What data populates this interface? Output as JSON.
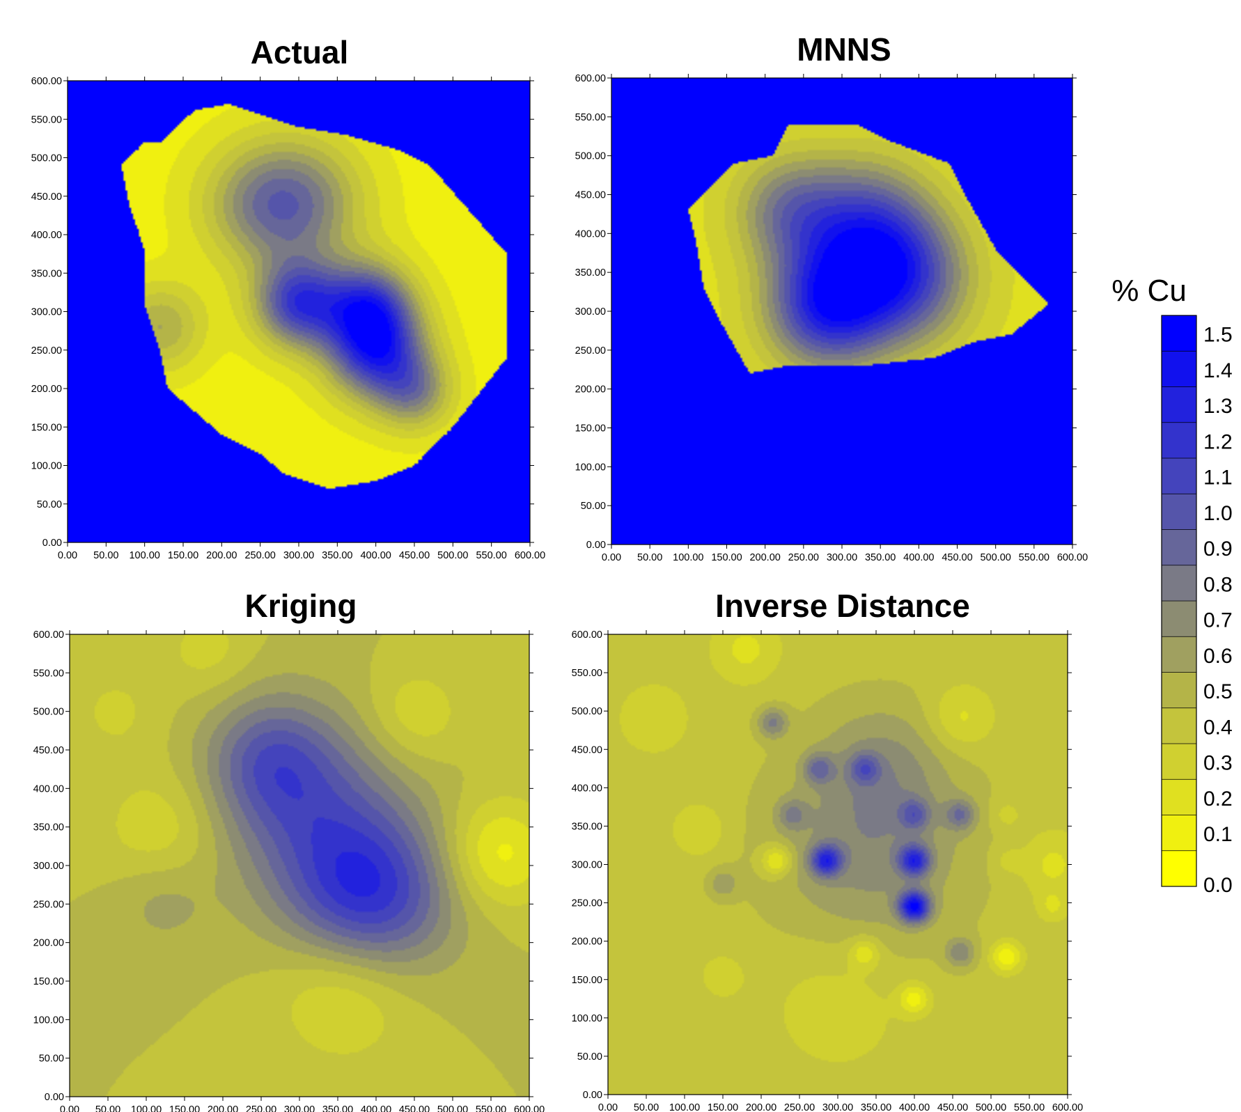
{
  "chart_data": {
    "type": "heatmap",
    "variable": "% Cu",
    "x_range": [
      0,
      600
    ],
    "y_range": [
      0,
      600
    ],
    "tick_values": [
      0,
      50,
      100,
      150,
      200,
      250,
      300,
      350,
      400,
      450,
      500,
      550,
      600
    ],
    "tick_labels": [
      "0.00",
      "50.00",
      "100.00",
      "150.00",
      "200.00",
      "250.00",
      "300.00",
      "350.00",
      "400.00",
      "450.00",
      "500.00",
      "550.00",
      "600.00"
    ],
    "panels": [
      {
        "title": "Actual",
        "background": 1.6,
        "region": [
          [
            70,
            490
          ],
          [
            100,
            520
          ],
          [
            120,
            520
          ],
          [
            165,
            562
          ],
          [
            210,
            570
          ],
          [
            300,
            540
          ],
          [
            360,
            530
          ],
          [
            430,
            510
          ],
          [
            470,
            490
          ],
          [
            570,
            375
          ],
          [
            570,
            240
          ],
          [
            500,
            150
          ],
          [
            450,
            100
          ],
          [
            400,
            80
          ],
          [
            340,
            70
          ],
          [
            280,
            90
          ],
          [
            250,
            115
          ],
          [
            200,
            140
          ],
          [
            130,
            200
          ],
          [
            120,
            250
          ],
          [
            100,
            310
          ],
          [
            100,
            380
          ],
          [
            80,
            440
          ]
        ],
        "bumps": [
          {
            "x": 400,
            "y": 250,
            "v": 1.1,
            "s": 45
          },
          {
            "x": 300,
            "y": 310,
            "v": 1.0,
            "s": 40
          },
          {
            "x": 390,
            "y": 310,
            "v": 0.85,
            "s": 40
          },
          {
            "x": 300,
            "y": 440,
            "v": 0.65,
            "s": 60
          },
          {
            "x": 450,
            "y": 195,
            "v": 0.55,
            "s": 35
          },
          {
            "x": 240,
            "y": 440,
            "v": 0.35,
            "s": 55
          },
          {
            "x": 120,
            "y": 280,
            "v": 0.45,
            "s": 40
          }
        ],
        "base": 0.15
      },
      {
        "title": "MNNS",
        "background": 1.6,
        "region": [
          [
            100,
            430
          ],
          [
            130,
            460
          ],
          [
            160,
            490
          ],
          [
            210,
            500
          ],
          [
            230,
            540
          ],
          [
            320,
            540
          ],
          [
            360,
            520
          ],
          [
            440,
            490
          ],
          [
            460,
            450
          ],
          [
            500,
            380
          ],
          [
            570,
            310
          ],
          [
            520,
            270
          ],
          [
            470,
            260
          ],
          [
            420,
            240
          ],
          [
            330,
            230
          ],
          [
            230,
            230
          ],
          [
            180,
            220
          ],
          [
            160,
            255
          ],
          [
            140,
            290
          ],
          [
            120,
            330
          ],
          [
            110,
            390
          ]
        ],
        "bumps": [
          {
            "x": 280,
            "y": 305,
            "v": 1.05,
            "s": 55
          },
          {
            "x": 380,
            "y": 340,
            "v": 0.85,
            "s": 60
          },
          {
            "x": 330,
            "y": 410,
            "v": 0.75,
            "s": 60
          },
          {
            "x": 230,
            "y": 430,
            "v": 0.55,
            "s": 50
          }
        ],
        "base": 0.25
      },
      {
        "title": "Kriging",
        "background": null,
        "region": null,
        "bumps": [
          {
            "x": 390,
            "y": 260,
            "v": 0.75,
            "s": 75
          },
          {
            "x": 310,
            "y": 380,
            "v": 0.45,
            "s": 85
          },
          {
            "x": 260,
            "y": 440,
            "v": 0.35,
            "s": 55
          },
          {
            "x": 120,
            "y": 255,
            "v": 0.15,
            "s": 45
          },
          {
            "x": 560,
            "y": 315,
            "v": -0.35,
            "s": 50
          },
          {
            "x": 360,
            "y": 145,
            "v": -0.3,
            "s": 65
          },
          {
            "x": 120,
            "y": 345,
            "v": -0.2,
            "s": 55
          },
          {
            "x": 450,
            "y": 495,
            "v": -0.2,
            "s": 45
          },
          {
            "x": 180,
            "y": 580,
            "v": -0.15,
            "s": 40
          },
          {
            "x": 60,
            "y": 500,
            "v": -0.12,
            "s": 45
          }
        ],
        "base": 0.5
      },
      {
        "title": "Inverse Distance",
        "background": null,
        "region": null,
        "bumps": [
          {
            "x": 400,
            "y": 245,
            "v": 0.95,
            "s": 14
          },
          {
            "x": 400,
            "y": 305,
            "v": 0.7,
            "s": 14
          },
          {
            "x": 285,
            "y": 305,
            "v": 0.7,
            "s": 14
          },
          {
            "x": 340,
            "y": 320,
            "v": 0.3,
            "s": 90
          },
          {
            "x": 360,
            "y": 430,
            "v": 0.2,
            "s": 60
          },
          {
            "x": 460,
            "y": 365,
            "v": 0.35,
            "s": 14
          },
          {
            "x": 400,
            "y": 365,
            "v": 0.35,
            "s": 14
          },
          {
            "x": 335,
            "y": 425,
            "v": 0.35,
            "s": 14
          },
          {
            "x": 275,
            "y": 425,
            "v": 0.35,
            "s": 14
          },
          {
            "x": 215,
            "y": 485,
            "v": 0.35,
            "s": 14
          },
          {
            "x": 460,
            "y": 185,
            "v": 0.3,
            "s": 14
          },
          {
            "x": 150,
            "y": 275,
            "v": 0.2,
            "s": 14
          },
          {
            "x": 240,
            "y": 365,
            "v": 0.25,
            "s": 14
          },
          {
            "x": 520,
            "y": 180,
            "v": -0.35,
            "s": 14
          },
          {
            "x": 220,
            "y": 305,
            "v": -0.35,
            "s": 14
          },
          {
            "x": 400,
            "y": 125,
            "v": -0.3,
            "s": 14
          },
          {
            "x": 335,
            "y": 185,
            "v": -0.25,
            "s": 14
          },
          {
            "x": 460,
            "y": 490,
            "v": -0.2,
            "s": 30
          },
          {
            "x": 180,
            "y": 580,
            "v": -0.18,
            "s": 30
          },
          {
            "x": 60,
            "y": 490,
            "v": -0.15,
            "s": 30
          },
          {
            "x": 120,
            "y": 345,
            "v": -0.15,
            "s": 25
          },
          {
            "x": 580,
            "y": 300,
            "v": -0.18,
            "s": 30
          },
          {
            "x": 520,
            "y": 365,
            "v": -0.12,
            "s": 14
          },
          {
            "x": 580,
            "y": 245,
            "v": -0.15,
            "s": 14
          },
          {
            "x": 150,
            "y": 155,
            "v": -0.12,
            "s": 20
          },
          {
            "x": 300,
            "y": 120,
            "v": -0.12,
            "s": 60
          },
          {
            "x": 520,
            "y": 305,
            "v": -0.1,
            "s": 14
          }
        ],
        "base": 0.45
      }
    ],
    "colorbar": {
      "title": "% Cu",
      "labels": [
        "1.5",
        "1.4",
        "1.3",
        "1.2",
        "1.1",
        "1.0",
        "0.9",
        "0.8",
        "0.7",
        "0.6",
        "0.5",
        "0.4",
        "0.3",
        "0.2",
        "0.1",
        "0.0"
      ],
      "levels": [
        0.0,
        0.1,
        0.2,
        0.3,
        0.4,
        0.5,
        0.6,
        0.7,
        0.8,
        0.9,
        1.0,
        1.1,
        1.2,
        1.3,
        1.4,
        1.5
      ],
      "colors": [
        "#ffff00",
        "#f0f010",
        "#e0e020",
        "#d0d030",
        "#c4c43c",
        "#b4b448",
        "#a0a060",
        "#8c8c72",
        "#7a7a86",
        "#66669a",
        "#5555aa",
        "#4444bc",
        "#3333cc",
        "#2222dd",
        "#1111ee",
        "#0000ff"
      ]
    }
  }
}
